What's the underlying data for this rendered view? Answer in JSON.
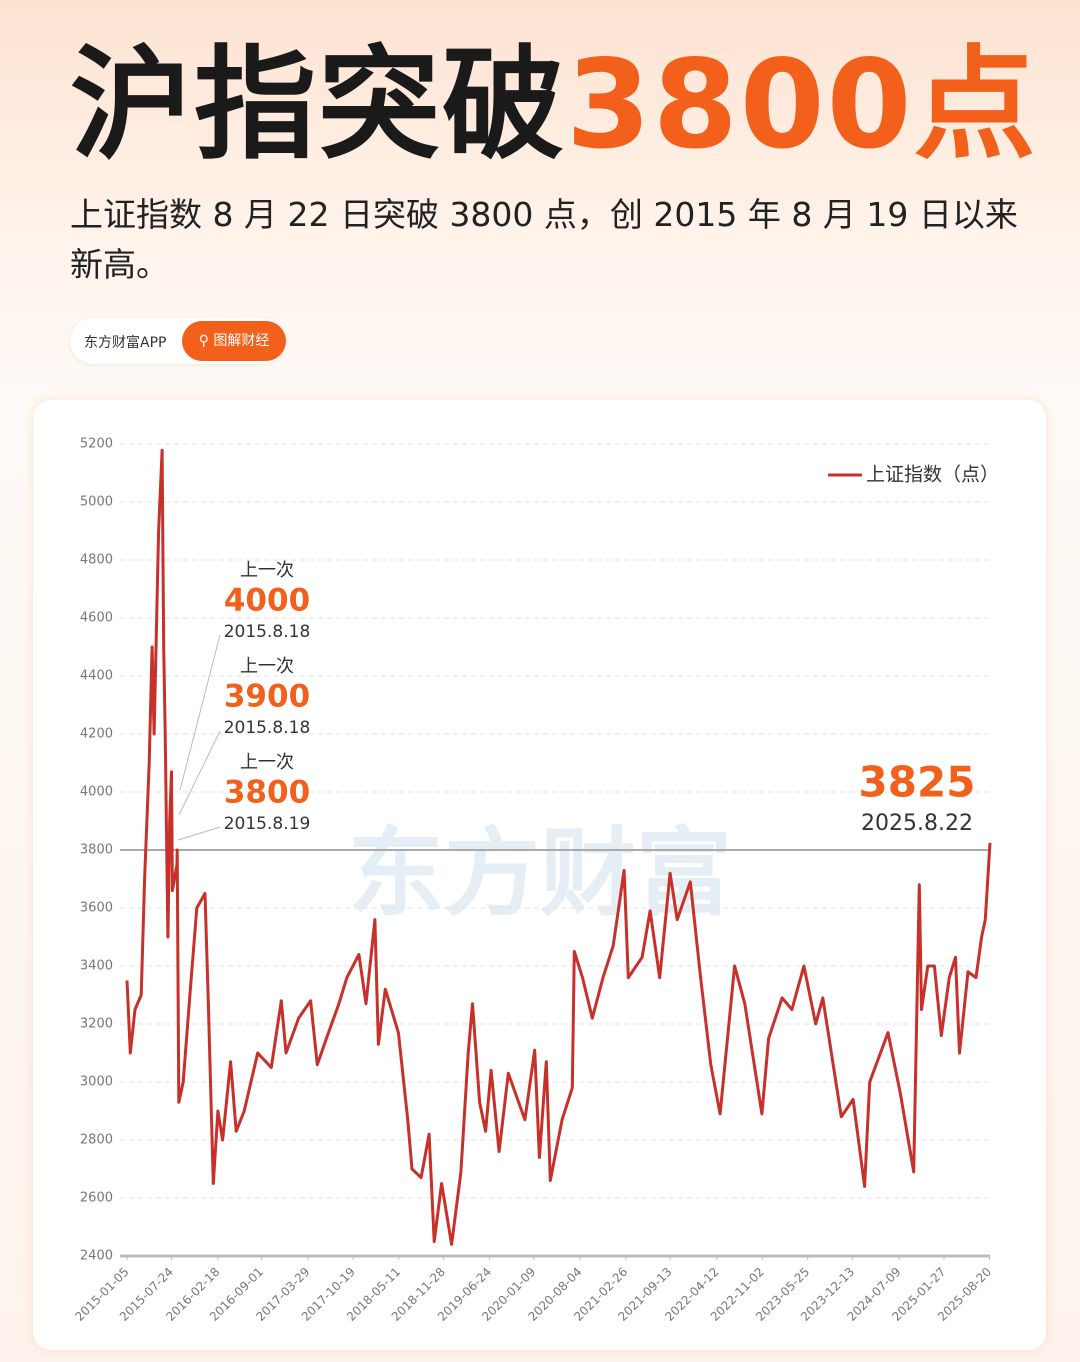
{
  "header": {
    "title_prefix": "沪指突破",
    "title_highlight": "3800点",
    "subtitle": "上证指数 8 月 22 日突破 3800 点，创 2015 年 8 月 19 日以来新高。",
    "source": "东方财富APP",
    "tag": "图解财经"
  },
  "chart_data": {
    "type": "line",
    "watermark": "东方财富",
    "x": [
      "2015-01-05",
      "2015-01-20",
      "2015-02-10",
      "2015-03-10",
      "2015-03-25",
      "2015-04-15",
      "2015-04-28",
      "2015-05-07",
      "2015-05-27",
      "2015-06-12",
      "2015-06-19",
      "2015-06-26",
      "2015-07-08",
      "2015-07-16",
      "2015-07-24",
      "2015-07-28",
      "2015-08-18",
      "2015-08-19",
      "2015-08-26",
      "2015-09-15",
      "2015-10-15",
      "2015-11-15",
      "2015-12-22",
      "2016-01-05",
      "2016-01-28",
      "2016-02-18",
      "2016-03-10",
      "2016-04-15",
      "2016-05-10",
      "2016-06-15",
      "2016-08-15",
      "2016-10-15",
      "2016-11-29",
      "2016-12-20",
      "2017-02-15",
      "2017-04-10",
      "2017-05-10",
      "2017-06-20",
      "2017-08-15",
      "2017-09-20",
      "2017-11-13",
      "2017-12-15",
      "2018-01-24",
      "2018-02-09",
      "2018-03-12",
      "2018-05-10",
      "2018-06-20",
      "2018-07-10",
      "2018-08-20",
      "2018-09-25",
      "2018-10-18",
      "2018-11-20",
      "2019-01-04",
      "2019-02-15",
      "2019-03-20",
      "2019-04-08",
      "2019-05-10",
      "2019-06-06",
      "2019-07-01",
      "2019-08-06",
      "2019-09-16",
      "2019-11-30",
      "2020-01-13",
      "2020-02-03",
      "2020-03-05",
      "2020-03-23",
      "2020-05-15",
      "2020-06-30",
      "2020-07-09",
      "2020-08-15",
      "2020-09-28",
      "2020-11-15",
      "2020-12-31",
      "2021-02-18",
      "2021-03-09",
      "2021-05-10",
      "2021-06-15",
      "2021-07-28",
      "2021-09-13",
      "2021-10-15",
      "2021-12-13",
      "2022-01-28",
      "2022-03-15",
      "2022-04-26",
      "2022-06-30",
      "2022-08-15",
      "2022-10-31",
      "2022-11-30",
      "2023-01-30",
      "2023-03-15",
      "2023-05-08",
      "2023-06-30",
      "2023-08-01",
      "2023-10-23",
      "2023-12-15",
      "2024-02-05",
      "2024-02-28",
      "2024-05-20",
      "2024-07-15",
      "2024-09-13",
      "2024-10-08",
      "2024-10-18",
      "2024-11-15",
      "2024-12-15",
      "2025-01-15",
      "2025-02-20",
      "2025-03-20",
      "2025-04-07",
      "2025-05-15",
      "2025-06-20",
      "2025-07-15",
      "2025-08-01",
      "2025-08-22"
    ],
    "series": [
      {
        "name": "上证指数（点）",
        "color": "#c8302a",
        "values": [
          3350,
          3100,
          3250,
          3300,
          3700,
          4100,
          4500,
          4200,
          4900,
          5178,
          4500,
          4200,
          3500,
          3900,
          4070,
          3660,
          3750,
          3800,
          2930,
          3000,
          3300,
          3600,
          3650,
          3300,
          2650,
          2900,
          2800,
          3070,
          2830,
          2900,
          3100,
          3050,
          3280,
          3100,
          3220,
          3280,
          3060,
          3150,
          3270,
          3360,
          3440,
          3270,
          3560,
          3130,
          3320,
          3170,
          2875,
          2700,
          2670,
          2820,
          2450,
          2650,
          2440,
          2690,
          3100,
          3270,
          2930,
          2830,
          3040,
          2760,
          3030,
          2870,
          3110,
          2740,
          3070,
          2660,
          2870,
          2980,
          3450,
          3360,
          3220,
          3360,
          3470,
          3730,
          3360,
          3430,
          3590,
          3360,
          3720,
          3560,
          3690,
          3360,
          3060,
          2890,
          3400,
          3270,
          2890,
          3150,
          3290,
          3250,
          3400,
          3200,
          3290,
          2880,
          2940,
          2640,
          3000,
          3170,
          2960,
          2690,
          3680,
          3250,
          3400,
          3400,
          3160,
          3360,
          3430,
          3100,
          3380,
          3360,
          3500,
          3560,
          3825
        ]
      }
    ],
    "xlim": [
      "2015-01-05",
      "2025-08-22"
    ],
    "xticks": [
      "2015-01-05",
      "2015-07-24",
      "2016-02-18",
      "2016-09-01",
      "2017-03-29",
      "2017-10-19",
      "2018-05-11",
      "2018-11-28",
      "2019-06-24",
      "2020-01-09",
      "2020-08-04",
      "2021-02-26",
      "2021-09-13",
      "2022-04-12",
      "2022-11-02",
      "2023-05-25",
      "2023-12-13",
      "2024-07-09",
      "2025-01-27",
      "2025-08-20"
    ],
    "ylim": [
      2400,
      5200
    ],
    "yticks": [
      2400,
      2600,
      2800,
      3000,
      3200,
      3400,
      3600,
      3800,
      4000,
      4200,
      4400,
      4600,
      4800,
      5000,
      5200
    ],
    "grid": true,
    "legend": "top-right",
    "reference_line": 3800,
    "annotations": [
      {
        "label": "上一次",
        "value": "4000",
        "date": "2015.8.18"
      },
      {
        "label": "上一次",
        "value": "3900",
        "date": "2015.8.18"
      },
      {
        "label": "上一次",
        "value": "3800",
        "date": "2015.8.19"
      },
      {
        "value": "3825",
        "date": "2025.8.22"
      }
    ]
  }
}
